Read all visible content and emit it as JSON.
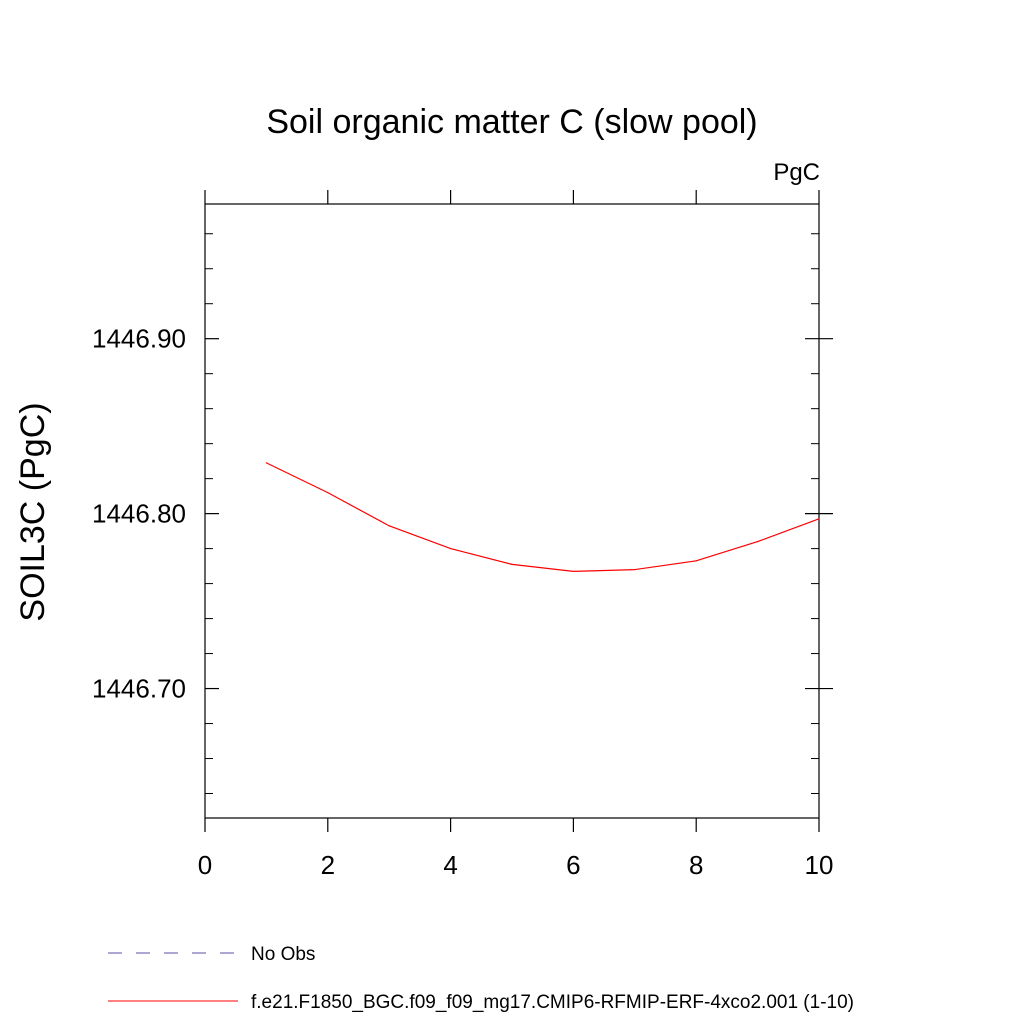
{
  "chart_data": {
    "type": "line",
    "title": "Soil organic matter C (slow pool)",
    "units_label": "PgC",
    "ylabel": "SOIL3C  (PgC)",
    "xlabel": "",
    "xlim": [
      0,
      10
    ],
    "ylim": [
      1446.626,
      1446.977
    ],
    "x_ticks": [
      0,
      2,
      4,
      6,
      8,
      10
    ],
    "x_tick_labels": [
      "0",
      "2",
      "4",
      "6",
      "8",
      "10"
    ],
    "y_ticks": [
      1446.7,
      1446.8,
      1446.9
    ],
    "y_tick_labels": [
      "1446.70",
      "1446.80",
      "1446.90"
    ],
    "y_minor_step": 0.02,
    "grid": false,
    "legend_position": "bottom",
    "series": [
      {
        "name": "f.e21.F1850_BGC.f09_f09_mg17.CMIP6-RFMIP-ERF-4xco2.001 (1-10)",
        "color": "#ff0000",
        "dash": "solid",
        "x": [
          1,
          2,
          3,
          4,
          5,
          6,
          7,
          8,
          9,
          10
        ],
        "values": [
          1446.829,
          1446.812,
          1446.793,
          1446.78,
          1446.771,
          1446.767,
          1446.768,
          1446.773,
          1446.784,
          1446.797
        ]
      }
    ],
    "legend": [
      {
        "label": "No Obs",
        "color": "#5b4fa6",
        "dash": "dashed"
      },
      {
        "label": "f.e21.F1850_BGC.f09_f09_mg17.CMIP6-RFMIP-ERF-4xco2.001 (1-10)",
        "color": "#ff0000",
        "dash": "solid"
      }
    ]
  }
}
